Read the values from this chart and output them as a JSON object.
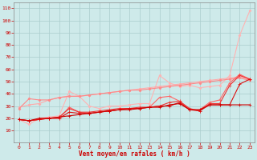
{
  "x": [
    0,
    1,
    2,
    3,
    4,
    5,
    6,
    7,
    8,
    9,
    10,
    11,
    12,
    13,
    14,
    15,
    16,
    17,
    18,
    19,
    20,
    21,
    22,
    23
  ],
  "series": [
    {
      "color": "#ffb3b3",
      "lw": 0.8,
      "marker": "D",
      "ms": 1.5,
      "y": [
        19,
        15,
        20,
        21,
        22,
        42,
        38,
        30,
        28,
        30,
        30,
        31,
        32,
        32,
        55,
        49,
        46,
        47,
        45,
        46,
        47,
        55,
        88,
        108
      ]
    },
    {
      "color": "#ffaaaa",
      "lw": 0.8,
      "marker": "D",
      "ms": 1.5,
      "y": [
        29,
        31,
        32,
        35,
        37,
        38,
        38,
        39,
        40,
        41,
        42,
        43,
        44,
        45,
        46,
        47,
        48,
        49,
        50,
        51,
        52,
        53,
        54,
        52
      ]
    },
    {
      "color": "#ff8888",
      "lw": 0.8,
      "marker": "D",
      "ms": 1.5,
      "y": [
        28,
        36,
        35,
        35,
        37,
        38,
        38,
        39,
        40,
        41,
        42,
        43,
        43,
        44,
        45,
        46,
        47,
        48,
        49,
        50,
        51,
        52,
        53,
        51
      ]
    },
    {
      "color": "#ff6666",
      "lw": 0.8,
      "marker": "+",
      "ms": 2.5,
      "y": [
        19,
        18,
        19,
        20,
        20,
        29,
        25,
        24,
        25,
        26,
        27,
        28,
        28,
        29,
        37,
        38,
        34,
        27,
        27,
        33,
        35,
        49,
        56,
        52
      ]
    },
    {
      "color": "#ee3333",
      "lw": 0.8,
      "marker": "+",
      "ms": 2.5,
      "y": [
        19,
        18,
        19,
        20,
        21,
        28,
        25,
        25,
        26,
        27,
        28,
        28,
        29,
        29,
        30,
        33,
        34,
        28,
        26,
        32,
        32,
        47,
        55,
        52
      ]
    },
    {
      "color": "#dd1111",
      "lw": 0.8,
      "marker": "+",
      "ms": 2.5,
      "y": [
        19,
        18,
        19,
        20,
        20,
        25,
        24,
        24,
        25,
        26,
        27,
        28,
        28,
        29,
        30,
        30,
        33,
        27,
        26,
        31,
        31,
        31,
        48,
        52
      ]
    },
    {
      "color": "#cc0000",
      "lw": 0.8,
      "marker": "+",
      "ms": 2.5,
      "y": [
        19,
        18,
        20,
        20,
        21,
        22,
        23,
        24,
        25,
        26,
        27,
        27,
        28,
        29,
        29,
        31,
        32,
        27,
        27,
        31,
        31,
        31,
        31,
        31
      ]
    }
  ],
  "xlim": [
    -0.5,
    23.5
  ],
  "ylim": [
    0,
    115
  ],
  "yticks": [
    10,
    20,
    30,
    40,
    50,
    60,
    70,
    80,
    90,
    100,
    110
  ],
  "xticks": [
    0,
    1,
    2,
    3,
    4,
    5,
    6,
    7,
    8,
    9,
    10,
    11,
    12,
    13,
    14,
    15,
    16,
    17,
    18,
    19,
    20,
    21,
    22,
    23
  ],
  "xlabel": "Vent moyen/en rafales ( km/h )",
  "bg_color": "#ceeaea",
  "grid_color": "#aacccc",
  "tick_color": "#cc0000",
  "label_color": "#cc0000"
}
